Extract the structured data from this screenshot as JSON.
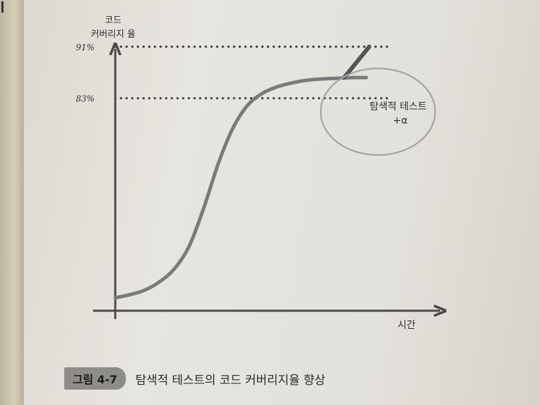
{
  "chart_data": {
    "type": "line",
    "y_axis_label_lines": [
      "코드",
      "커버리지 율"
    ],
    "x_axis_label": "시간",
    "reference_lines": [
      {
        "label": "91%",
        "value": 91
      },
      {
        "label": "83%",
        "value": 83
      }
    ],
    "series": [
      {
        "x": [
          0,
          1,
          2,
          3,
          4,
          5,
          6,
          7,
          8,
          9,
          10,
          11,
          12,
          13,
          14,
          15,
          16,
          17
        ],
        "y": [
          52,
          52.5,
          53.2,
          54.5,
          56.5,
          60,
          66,
          73,
          78.5,
          82,
          83.8,
          84.8,
          85.4,
          85.8,
          86,
          86.1,
          86.2,
          86.2
        ]
      }
    ],
    "exploratory_segment": {
      "x": [
        15.5,
        17.2
      ],
      "y": [
        86.2,
        91
      ]
    },
    "annotation": {
      "lines": [
        "탐색적 테스트",
        "+α"
      ]
    },
    "ylim": [
      50,
      95
    ],
    "xlim": [
      0,
      22
    ]
  },
  "caption": {
    "badge": "그림 4-7",
    "text": "탐색적 테스트의 코드 커버리지율 향상"
  },
  "colors": {
    "axis": "#4a4a4a",
    "curve": "#7a7a7a",
    "dots": "#3a3a3a",
    "ellipse": "#a4a4a4"
  }
}
